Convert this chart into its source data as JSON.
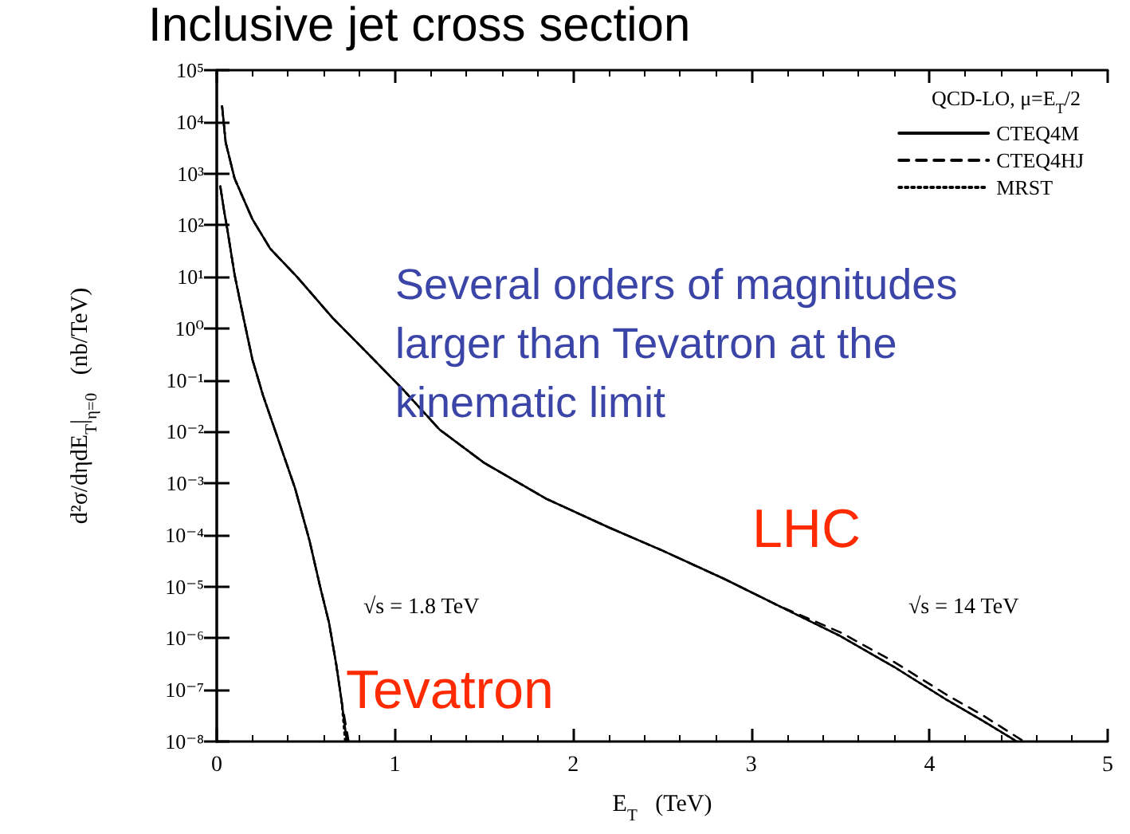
{
  "chart_data": {
    "type": "line",
    "title": "Inclusive jet cross section",
    "xlabel": "E$_{T}$   (TeV)",
    "ylabel": "d²σ/dηdE$_{T}$|$_{η=0}$   (nb/TeV)",
    "legend_title": "QCD-LO, μ=E$_{T}$/2",
    "legend": "top right",
    "log": "y",
    "grid": false,
    "marker": "none",
    "xlim": [
      0,
      5
    ],
    "xticks": [
      0,
      1,
      2,
      3,
      4,
      5
    ],
    "ylim": [
      1e-08,
      100000.0
    ],
    "yticks": [
      {
        "value": 1e-08,
        "label": "10⁻⁸"
      },
      {
        "value": 1e-07,
        "label": "10⁻⁷"
      },
      {
        "value": 1e-06,
        "label": "10⁻⁶"
      },
      {
        "value": 1e-05,
        "label": "10⁻⁵"
      },
      {
        "value": 0.0001,
        "label": "10⁻⁴"
      },
      {
        "value": 0.001,
        "label": "10⁻³"
      },
      {
        "value": 0.01,
        "label": "10⁻²"
      },
      {
        "value": 0.1,
        "label": "10⁻¹"
      },
      {
        "value": 1,
        "label": "10⁰"
      },
      {
        "value": 10,
        "label": "10¹"
      },
      {
        "value": 100,
        "label": "10²"
      },
      {
        "value": 1000,
        "label": "10³"
      },
      {
        "value": 10000,
        "label": "10⁴"
      },
      {
        "value": 100000,
        "label": "10⁵"
      }
    ],
    "series": [
      {
        "name": "CTEQ4M",
        "color": "#000000",
        "line_style": "solid",
        "x": [
          0.03,
          0.05,
          0.1,
          0.2,
          0.3,
          0.45,
          0.65,
          0.85,
          1.05,
          1.25,
          1.5,
          1.85,
          2.2,
          2.5,
          2.85,
          3.15,
          3.5,
          3.8,
          4.1,
          4.3,
          4.49
        ],
        "values": [
          20000.0,
          4000.0,
          800.0,
          130.0,
          35,
          10,
          1.6,
          0.32,
          0.063,
          0.011,
          0.0025,
          0.0005,
          0.00014,
          5e-05,
          1.4e-05,
          4.3e-06,
          1.1e-06,
          2.8e-07,
          6.3e-08,
          2.5e-08,
          1e-08
        ]
      },
      {
        "name": "CTEQ4HJ",
        "color": "#000000",
        "line_style": "dashed",
        "x": [
          0.03,
          0.05,
          0.1,
          0.2,
          0.3,
          0.45,
          0.65,
          0.85,
          1.05,
          1.25,
          1.5,
          1.85,
          2.2,
          2.5,
          2.85,
          3.15,
          3.5,
          3.8,
          4.1,
          4.3,
          4.53
        ],
        "values": [
          20000.0,
          4000.0,
          800.0,
          130.0,
          35,
          10,
          1.6,
          0.32,
          0.063,
          0.011,
          0.0025,
          0.0005,
          0.00014,
          5e-05,
          1.4e-05,
          4.3e-06,
          1.3e-06,
          3.5e-07,
          7.9e-08,
          3.2e-08,
          1e-08
        ]
      },
      {
        "name": "MRST",
        "color": "#000000",
        "line_style": "dotted",
        "x": [
          0.03,
          0.05,
          0.1,
          0.2,
          0.3,
          0.45,
          0.65,
          0.85,
          1.05,
          1.25,
          1.5,
          1.85,
          2.2,
          2.5,
          2.85,
          3.15,
          3.5,
          3.8,
          4.1,
          4.3,
          4.49
        ],
        "values": [
          20000.0,
          4000.0,
          800.0,
          130.0,
          35,
          10,
          1.6,
          0.32,
          0.063,
          0.011,
          0.0025,
          0.0005,
          0.00014,
          5e-05,
          1.4e-05,
          4.3e-06,
          1.1e-06,
          2.8e-07,
          6.3e-08,
          2.5e-08,
          1e-08
        ]
      },
      {
        "color": "#000000",
        "line_style": "solid",
        "x": [
          0.02,
          0.04,
          0.06,
          0.1,
          0.15,
          0.2,
          0.26,
          0.35,
          0.44,
          0.52,
          0.58,
          0.63,
          0.67,
          0.7,
          0.73
        ],
        "values": [
          560.0,
          200.0,
          80,
          11,
          1.6,
          0.25,
          0.05,
          0.0063,
          0.00079,
          7.9e-05,
          1e-05,
          2e-06,
          3.2e-07,
          6.3e-08,
          1e-08
        ]
      },
      {
        "color": "#000000",
        "line_style": "dashed",
        "x": [
          0.02,
          0.04,
          0.06,
          0.1,
          0.15,
          0.2,
          0.26,
          0.35,
          0.44,
          0.52,
          0.58,
          0.63,
          0.67,
          0.7,
          0.74
        ],
        "values": [
          560.0,
          200.0,
          80,
          11,
          1.6,
          0.25,
          0.05,
          0.0063,
          0.00079,
          7.9e-05,
          1e-05,
          2e-06,
          3.2e-07,
          6.3e-08,
          1e-08
        ]
      },
      {
        "color": "#000000",
        "line_style": "dotted",
        "x": [
          0.02,
          0.04,
          0.06,
          0.1,
          0.15,
          0.2,
          0.26,
          0.35,
          0.44,
          0.52,
          0.58,
          0.63,
          0.67,
          0.7,
          0.72
        ],
        "values": [
          560.0,
          200.0,
          80,
          11,
          1.6,
          0.25,
          0.05,
          0.0063,
          0.00079,
          7.9e-05,
          1e-05,
          2e-06,
          3.2e-07,
          6.3e-08,
          1e-08
        ]
      }
    ],
    "annotations": [
      "√s = 1.8 TeV",
      "√s = 14 TeV",
      "LHC",
      "Tevatron",
      "Several orders of magnitudes\nlarger than Tevatron at the\nkinematic limit"
    ]
  }
}
